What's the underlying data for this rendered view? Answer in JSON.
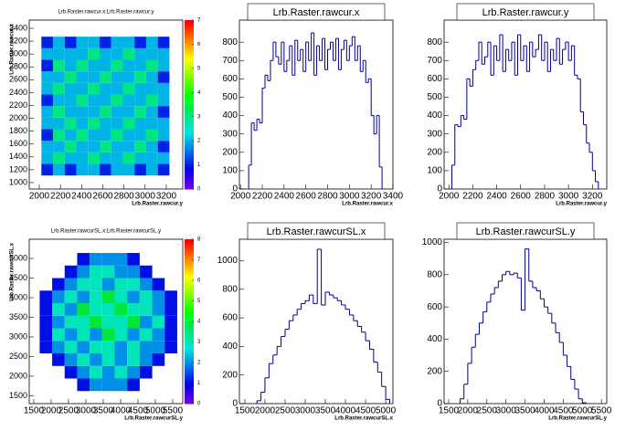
{
  "chart_data": [
    {
      "type": "heatmap",
      "title": "Lrb.Raster.rawcur.x:Lrb.Raster.rawcur.y",
      "x_label": "Lrb.Raster.rawcur.y",
      "y_label": "Lrb.Raster.rawcur.x",
      "xbins": [
        2020,
        2130,
        2240,
        2350,
        2460,
        2570,
        2680,
        2790,
        2900,
        3010,
        3120,
        3230
      ],
      "ybins": [
        1110,
        1290,
        1470,
        1650,
        1830,
        2010,
        2190,
        2370,
        2550,
        2730,
        2910,
        3090,
        3270
      ],
      "z": [
        [
          1,
          2,
          1,
          2,
          2,
          1,
          2,
          2,
          1,
          2,
          1
        ],
        [
          2,
          3,
          2,
          2,
          3,
          2,
          2,
          3,
          2,
          2,
          2
        ],
        [
          2,
          2,
          3,
          2,
          2,
          3,
          2,
          2,
          3,
          2,
          1
        ],
        [
          1,
          3,
          2,
          3,
          2,
          2,
          3,
          2,
          2,
          3,
          2
        ],
        [
          2,
          2,
          3,
          2,
          3,
          2,
          2,
          3,
          2,
          2,
          2
        ],
        [
          2,
          3,
          2,
          2,
          2,
          3,
          2,
          2,
          3,
          2,
          1
        ],
        [
          1,
          2,
          2,
          3,
          2,
          2,
          3,
          2,
          2,
          3,
          2
        ],
        [
          2,
          3,
          2,
          2,
          3,
          2,
          2,
          3,
          2,
          2,
          2
        ],
        [
          2,
          2,
          3,
          2,
          2,
          3,
          2,
          2,
          3,
          2,
          1
        ],
        [
          1,
          3,
          2,
          3,
          2,
          2,
          3,
          2,
          2,
          3,
          2
        ],
        [
          2,
          2,
          2,
          2,
          3,
          2,
          2,
          3,
          2,
          2,
          2
        ],
        [
          1,
          2,
          1,
          2,
          2,
          1,
          2,
          2,
          1,
          2,
          1
        ]
      ],
      "zlim": [
        0,
        7
      ],
      "zticks": [
        0,
        1,
        2,
        3,
        4,
        5,
        6,
        7
      ],
      "xlim": [
        1905,
        3356
      ],
      "ylim": [
        900,
        3528
      ],
      "xticks": [
        2000,
        2200,
        2400,
        2600,
        2800,
        3000,
        3200
      ],
      "yticks": [
        1000,
        1200,
        1400,
        1600,
        1800,
        2000,
        2200,
        2400,
        2600,
        2800,
        3000,
        3200,
        3400
      ]
    },
    {
      "type": "histogram",
      "title": "Lrb.Raster.rawcur.x",
      "x_label": "Lrb.Raster.rawcur.x",
      "color": "#00008b",
      "bins": [
        2075,
        2100,
        2125,
        2150,
        2175,
        2200,
        2225,
        2250,
        2275,
        2300,
        2325,
        2350,
        2375,
        2400,
        2425,
        2450,
        2475,
        2500,
        2525,
        2550,
        2575,
        2600,
        2625,
        2650,
        2675,
        2700,
        2725,
        2750,
        2775,
        2800,
        2825,
        2850,
        2875,
        2900,
        2925,
        2950,
        2975,
        3000,
        3025,
        3050,
        3075,
        3100,
        3125,
        3150,
        3175,
        3200,
        3225,
        3250,
        3275,
        3300
      ],
      "values": [
        130,
        360,
        320,
        380,
        360,
        550,
        620,
        590,
        700,
        800,
        720,
        680,
        800,
        640,
        700,
        780,
        620,
        810,
        700,
        760,
        640,
        800,
        700,
        850,
        620,
        780,
        700,
        820,
        650,
        760,
        800,
        700,
        820,
        650,
        760,
        810,
        700,
        780,
        830,
        700,
        780,
        640,
        700,
        580,
        600,
        400,
        300,
        400,
        120
      ],
      "xlim": [
        1990,
        3400
      ],
      "ylim": [
        0,
        920
      ],
      "xticks": [
        2000,
        2200,
        2400,
        2600,
        2800,
        3000,
        3200,
        3400
      ],
      "yticks": [
        0,
        100,
        200,
        300,
        400,
        500,
        600,
        700,
        800
      ]
    },
    {
      "type": "histogram",
      "title": "Lrb.Raster.rawcur.y",
      "x_label": "Lrb.Raster.rawcur.y",
      "color": "#00008b",
      "bins": [
        2025,
        2050,
        2075,
        2100,
        2125,
        2150,
        2175,
        2200,
        2225,
        2250,
        2275,
        2300,
        2325,
        2350,
        2375,
        2400,
        2425,
        2450,
        2475,
        2500,
        2525,
        2550,
        2575,
        2600,
        2625,
        2650,
        2675,
        2700,
        2725,
        2750,
        2775,
        2800,
        2825,
        2850,
        2875,
        2900,
        2925,
        2950,
        2975,
        3000,
        3025,
        3050,
        3075,
        3100,
        3125,
        3150,
        3175,
        3200,
        3225,
        3250
      ],
      "values": [
        130,
        350,
        340,
        400,
        380,
        600,
        560,
        650,
        700,
        800,
        680,
        720,
        800,
        620,
        780,
        700,
        840,
        640,
        760,
        700,
        800,
        620,
        840,
        700,
        780,
        640,
        800,
        720,
        760,
        840,
        700,
        800,
        640,
        760,
        700,
        820,
        680,
        760,
        800,
        700,
        780,
        620,
        600,
        420,
        350,
        250,
        200,
        100,
        40
      ],
      "xlim": [
        1960,
        3320
      ],
      "ylim": [
        0,
        920
      ],
      "xticks": [
        2000,
        2200,
        2400,
        2600,
        2800,
        3000,
        3200
      ],
      "yticks": [
        0,
        100,
        200,
        300,
        400,
        500,
        600,
        700,
        800
      ]
    },
    {
      "type": "heatmap",
      "title": "Lrb.Raster.rawcurSL.x:Lrb.Raster.rawcurSL.y",
      "x_label": "Lrb.Raster.rawcurSL.y",
      "y_label": "Lrb.Raster.rawcurSL.x",
      "xbins": [
        1670,
        2030,
        2390,
        2750,
        3110,
        3470,
        3830,
        4190,
        4550,
        4910,
        5270,
        5630
      ],
      "ybins": [
        1620,
        1940,
        2260,
        2580,
        2900,
        3220,
        3540,
        3860,
        4180,
        4500,
        4820,
        5140
      ],
      "z": [
        [
          0,
          0,
          0,
          1,
          2,
          2,
          2,
          1,
          0,
          0,
          0
        ],
        [
          0,
          0,
          1,
          2,
          3,
          2,
          3,
          2,
          1,
          0,
          0
        ],
        [
          0,
          1,
          2,
          3,
          2,
          3,
          2,
          3,
          2,
          1,
          0
        ],
        [
          1,
          2,
          3,
          2,
          3,
          3,
          2,
          3,
          2,
          2,
          1
        ],
        [
          1,
          3,
          2,
          3,
          2,
          4,
          3,
          2,
          3,
          2,
          1
        ],
        [
          1,
          2,
          3,
          3,
          4,
          3,
          3,
          4,
          2,
          3,
          1
        ],
        [
          1,
          3,
          2,
          4,
          3,
          3,
          4,
          3,
          3,
          2,
          1
        ],
        [
          1,
          2,
          3,
          2,
          3,
          4,
          3,
          2,
          3,
          2,
          1
        ],
        [
          0,
          1,
          2,
          3,
          3,
          2,
          3,
          3,
          2,
          1,
          0
        ],
        [
          0,
          0,
          1,
          2,
          3,
          3,
          2,
          2,
          1,
          0,
          0
        ],
        [
          0,
          0,
          0,
          1,
          2,
          2,
          2,
          1,
          0,
          0,
          0
        ]
      ],
      "zlim": [
        0,
        8
      ],
      "zticks": [
        0,
        1,
        2,
        3,
        4,
        5,
        6,
        7,
        8
      ],
      "xlim": [
        1370,
        5790
      ],
      "ylim": [
        1300,
        5490
      ],
      "xticks": [
        1500,
        2000,
        2500,
        3000,
        3500,
        4000,
        4500,
        5000,
        5500
      ],
      "yticks": [
        1500,
        2000,
        2500,
        3000,
        3500,
        4000,
        4500,
        5000
      ]
    },
    {
      "type": "histogram",
      "title": "Lrb.Raster.rawcurSL.x",
      "x_label": "Lrb.Raster.rawcurSL.x",
      "color": "#00008b",
      "bins": [
        1800,
        1900,
        2000,
        2100,
        2200,
        2300,
        2400,
        2500,
        2600,
        2700,
        2800,
        2900,
        3000,
        3100,
        3200,
        3300,
        3400,
        3500,
        3600,
        3700,
        3800,
        3900,
        4000,
        4100,
        4200,
        4300,
        4400,
        4500,
        4600,
        4700,
        4800,
        4900,
        5000,
        5100
      ],
      "values": [
        20,
        80,
        180,
        280,
        340,
        400,
        470,
        520,
        580,
        620,
        660,
        700,
        720,
        760,
        700,
        1080,
        690,
        780,
        760,
        740,
        720,
        690,
        660,
        620,
        580,
        540,
        500,
        440,
        380,
        290,
        220,
        120,
        30
      ],
      "xlim": [
        1365,
        5180
      ],
      "ylim": [
        0,
        1150
      ],
      "xticks": [
        1500,
        2000,
        2500,
        3000,
        3500,
        4000,
        4500,
        5000
      ],
      "yticks": [
        0,
        200,
        400,
        600,
        800,
        1000
      ]
    },
    {
      "type": "histogram",
      "title": "Lrb.Raster.rawcurSL.y",
      "x_label": "Lrb.Raster.rawcurSL.y",
      "color": "#00008b",
      "bins": [
        1800,
        1900,
        2000,
        2100,
        2200,
        2300,
        2400,
        2500,
        2600,
        2700,
        2800,
        2900,
        3000,
        3100,
        3200,
        3300,
        3400,
        3500,
        3600,
        3700,
        3800,
        3900,
        4000,
        4100,
        4200,
        4300,
        4400,
        4500,
        4600,
        4700,
        4800,
        4900,
        5000,
        5100
      ],
      "values": [
        30,
        120,
        250,
        350,
        430,
        500,
        570,
        630,
        680,
        720,
        760,
        800,
        820,
        800,
        810,
        780,
        580,
        960,
        760,
        720,
        700,
        650,
        600,
        560,
        500,
        440,
        380,
        300,
        230,
        150,
        90,
        30,
        5
      ],
      "xlim": [
        1380,
        5640
      ],
      "ylim": [
        0,
        1020
      ],
      "xticks": [
        1500,
        2000,
        2500,
        3000,
        3500,
        4000,
        4500,
        5000,
        5500
      ],
      "yticks": [
        0,
        200,
        400,
        600,
        800,
        1000
      ]
    }
  ]
}
